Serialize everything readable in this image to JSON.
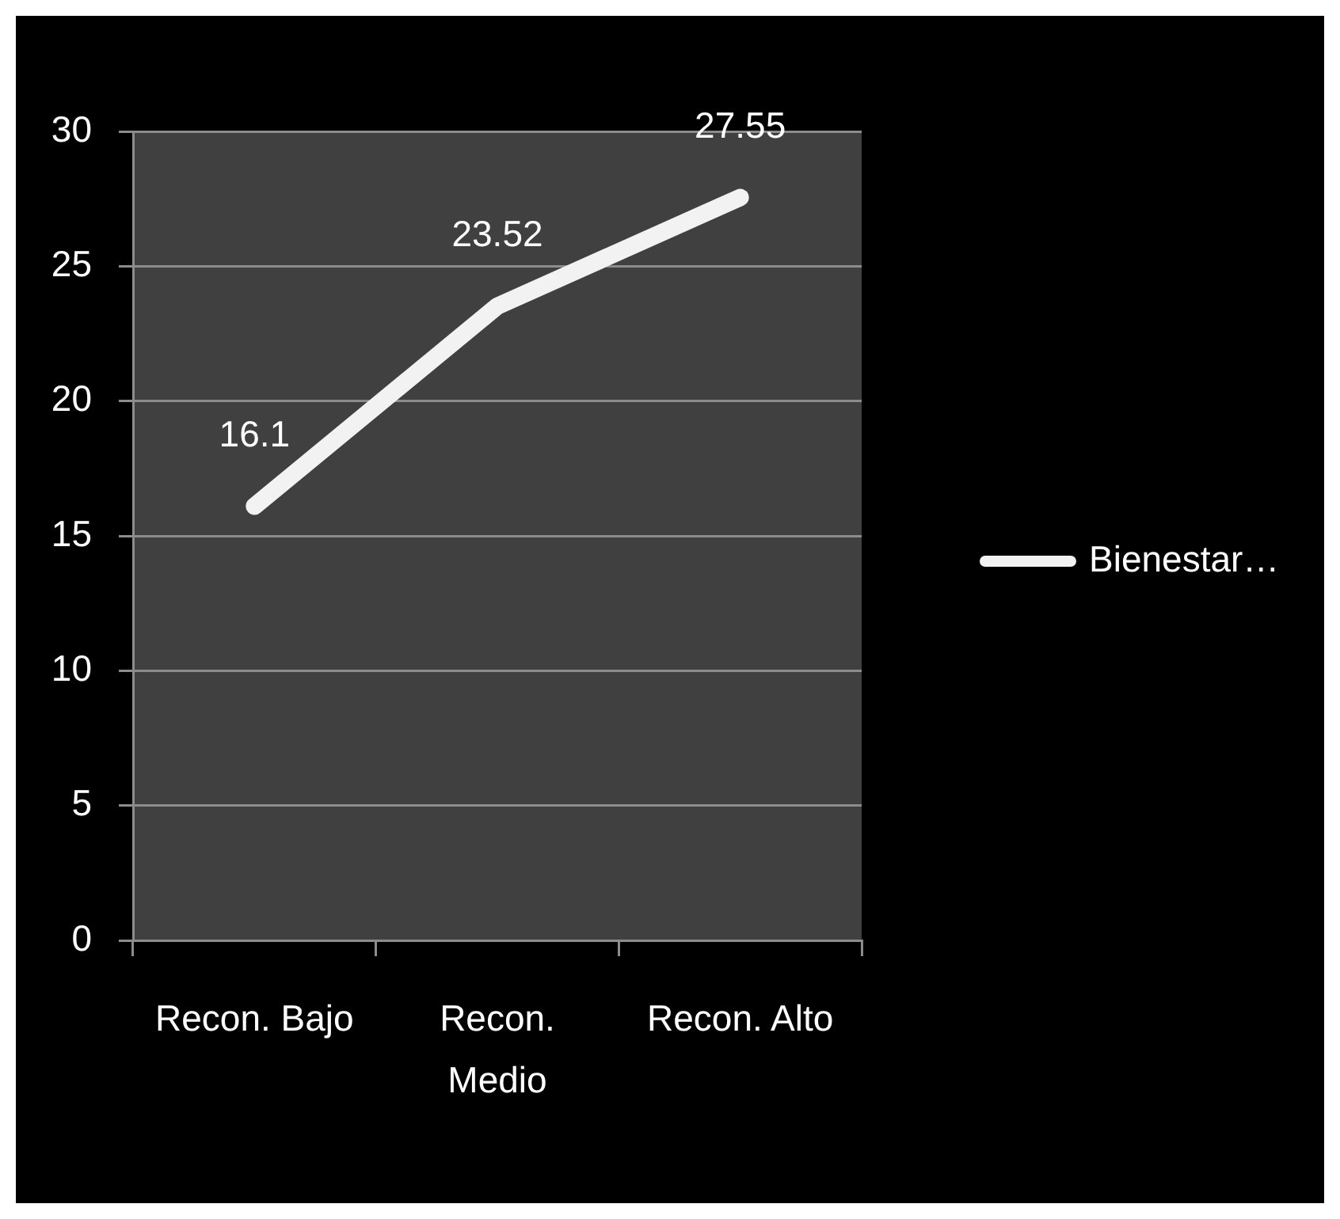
{
  "chart_data": {
    "type": "line",
    "categories": [
      "Recon. Bajo",
      "Recon. Medio",
      "Recon. Alto"
    ],
    "series": [
      {
        "name": "Bienestar…",
        "color": "#f2f2f2",
        "values": [
          16.1,
          23.52,
          27.55
        ]
      }
    ],
    "ylim": [
      0,
      30
    ],
    "yticks": [
      0,
      5,
      10,
      15,
      20,
      25,
      30
    ],
    "grid": "y",
    "legend": "right",
    "data_labels": true
  }
}
